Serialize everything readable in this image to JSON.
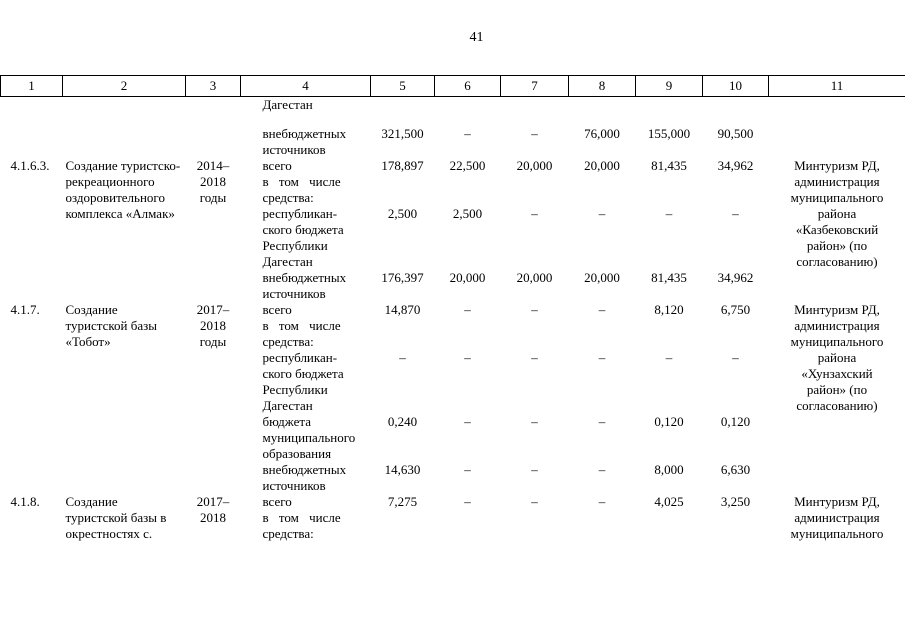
{
  "page": {
    "number": "41"
  },
  "colors": {
    "ink": "#000000",
    "paper": "#ffffff"
  },
  "table": {
    "header": [
      "1",
      "2",
      "3",
      "4",
      "5",
      "6",
      "7",
      "8",
      "9",
      "10",
      "11"
    ],
    "blocks": [
      {
        "num": "",
        "name": "",
        "years": "",
        "executor": "",
        "lines": [
          {
            "item": "Дагестан",
            "values": [
              "",
              "",
              "",
              "",
              "",
              ""
            ],
            "gap": true
          },
          {
            "item": "внебюджетных\nисточников",
            "values": [
              "321,500",
              "–",
              "–",
              "76,000",
              "155,000",
              "90,500"
            ]
          }
        ]
      },
      {
        "num": "4.1.6.3.",
        "name": "Создание туристско-\nрекреационного\nоздоровительного\nкомплекса «Алмак»",
        "years": "2014–\n2018\nгоды",
        "executor": "Минтуризм РД,\nадминистрация\nмуниципального\nрайона\n«Казбековский\nрайон» (по\nсогласованию)",
        "lines": [
          {
            "item": "всего",
            "values": [
              "178,897",
              "22,500",
              "20,000",
              "20,000",
              "81,435",
              "34,962"
            ]
          },
          {
            "item": "в том числе\nсредства:",
            "values": [
              "",
              "",
              "",
              "",
              "",
              ""
            ]
          },
          {
            "item": "республикан-\nского бюджета\nРеспублики\nДагестан",
            "values": [
              "2,500",
              "2,500",
              "–",
              "–",
              "–",
              "–"
            ]
          },
          {
            "item": "внебюджетных\nисточников",
            "values": [
              "176,397",
              "20,000",
              "20,000",
              "20,000",
              "81,435",
              "34,962"
            ]
          }
        ]
      },
      {
        "num": "4.1.7.",
        "name": "Создание\nтуристской базы\n«Тобот»",
        "years": "2017–\n2018\nгоды",
        "executor": "Минтуризм РД,\nадминистрация\nмуниципального\nрайона\n«Хунзахский\nрайон» (по\nсогласованию)",
        "lines": [
          {
            "item": "всего",
            "values": [
              "14,870",
              "–",
              "–",
              "–",
              "8,120",
              "6,750"
            ]
          },
          {
            "item": "в том числе\nсредства:",
            "values": [
              "",
              "",
              "",
              "",
              "",
              ""
            ]
          },
          {
            "item": "республикан-\nского бюджета\nРеспублики\nДагестан",
            "values": [
              "–",
              "–",
              "–",
              "–",
              "–",
              "–"
            ]
          },
          {
            "item": "бюджета\nмуниципального\nобразования",
            "values": [
              "0,240",
              "–",
              "–",
              "–",
              "0,120",
              "0,120"
            ]
          },
          {
            "item": "внебюджетных\nисточников",
            "values": [
              "14,630",
              "–",
              "–",
              "–",
              "8,000",
              "6,630"
            ]
          }
        ]
      },
      {
        "num": "4.1.8.",
        "name": "Создание\nтуристской базы в\nокрестностях с.",
        "years": "2017–\n2018",
        "executor": "Минтуризм РД,\nадминистрация\nмуниципального",
        "lines": [
          {
            "item": "всего",
            "values": [
              "7,275",
              "–",
              "–",
              "–",
              "4,025",
              "3,250"
            ]
          },
          {
            "item": "в том числе\nсредства:",
            "values": [
              "",
              "",
              "",
              "",
              "",
              ""
            ]
          }
        ]
      }
    ]
  }
}
